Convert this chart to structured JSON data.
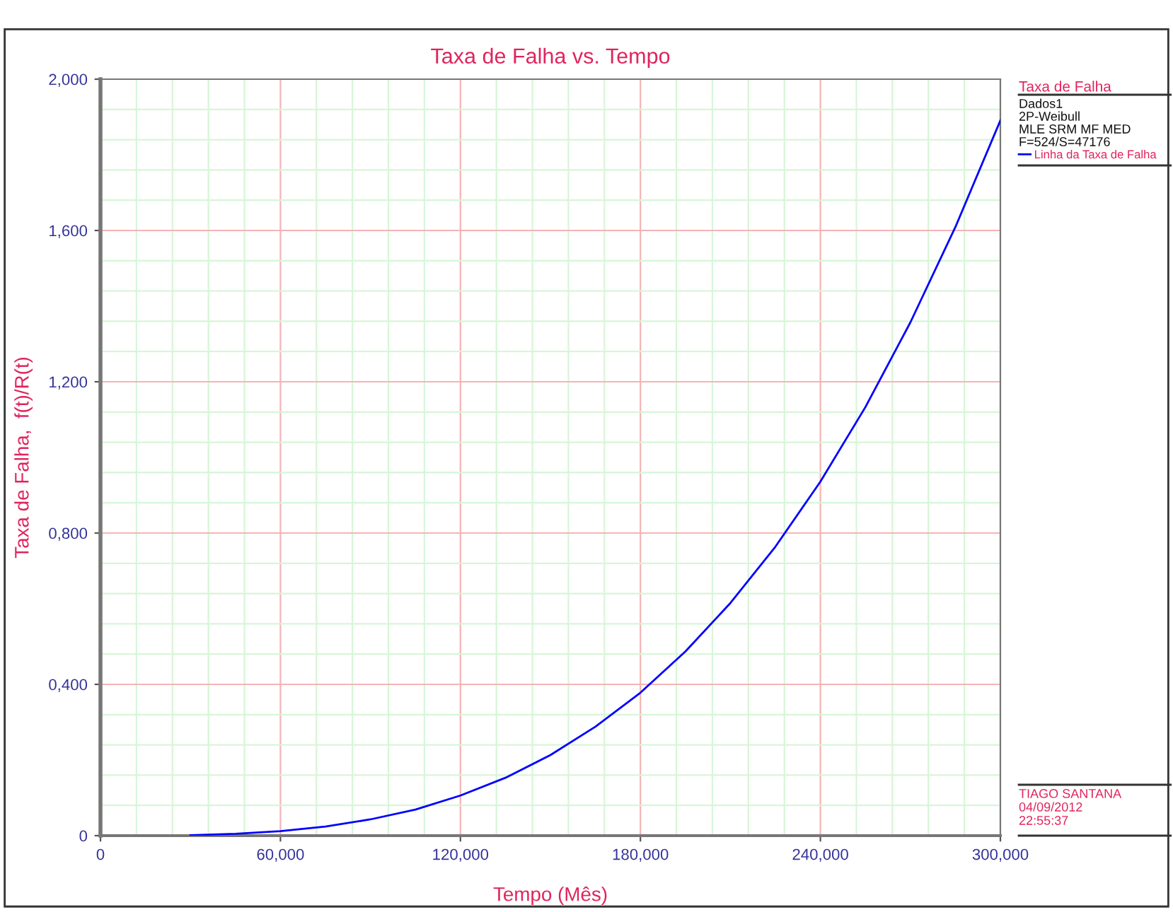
{
  "chart_data": {
    "type": "line",
    "title": "Taxa de Falha vs. Tempo",
    "xlabel": "Tempo (Mês)",
    "ylabel": "Taxa de Falha,  f(t)/R(t)",
    "legend_title": "Taxa de Falha",
    "annotations": [
      "Dados1",
      "2P-Weibull",
      "MLE SRM MF MED",
      "F=524/S=47176",
      "TIAGO SANTANA",
      "04/09/2012",
      "22:55:37"
    ],
    "series": [
      {
        "name": "Linha da Taxa de Falha",
        "color": "#0000ff",
        "x": [
          30,
          45,
          60,
          75,
          90,
          105,
          120,
          135,
          150,
          165,
          180,
          195,
          210,
          225,
          240,
          255,
          270,
          285,
          300
        ],
        "values": [
          0.001,
          0.005,
          0.012,
          0.024,
          0.043,
          0.069,
          0.106,
          0.153,
          0.213,
          0.288,
          0.378,
          0.487,
          0.615,
          0.764,
          0.936,
          1.133,
          1.357,
          1.609,
          1.891
        ]
      }
    ],
    "xlim": [
      0,
      300
    ],
    "ylim": [
      0,
      2.0
    ],
    "xticks": [
      0,
      {
        "value": 60,
        "label": "60,000"
      },
      {
        "value": 120,
        "label": "120,000"
      },
      {
        "value": 180,
        "label": "180,000"
      },
      {
        "value": 240,
        "label": "240,000"
      },
      {
        "value": 300,
        "label": "300,000"
      }
    ],
    "yticks": [
      0,
      {
        "value": 0.4,
        "label": "0,400"
      },
      {
        "value": 0.8,
        "label": "0,800"
      },
      {
        "value": 1.2,
        "label": "1,200"
      },
      {
        "value": 1.6,
        "label": "1,600"
      },
      {
        "value": 2.0,
        "label": "2,000"
      }
    ],
    "grid": true,
    "legend": "right",
    "marker": "none",
    "line_style": "solid"
  }
}
